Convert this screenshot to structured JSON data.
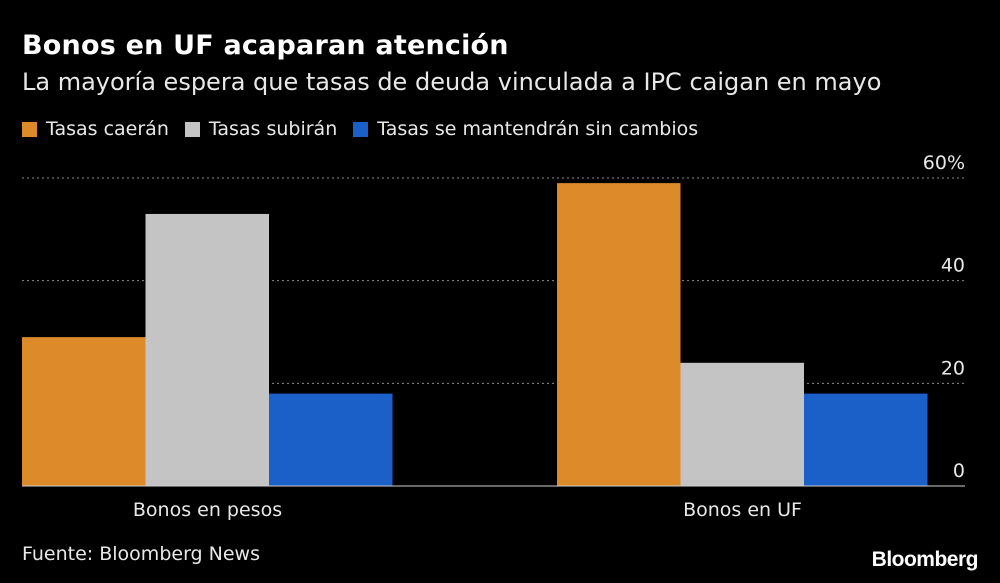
{
  "header": {
    "title": "Bonos en UF acaparan atención",
    "subtitle": "La mayoría espera que tasas de deuda vinculada a IPC caigan en mayo"
  },
  "legend": {
    "items": [
      {
        "label": "Tasas caerán",
        "color": "#dc8a2a"
      },
      {
        "label": "Tasas subirán",
        "color": "#c4c4c4"
      },
      {
        "label": "Tasas se mantendrán sin cambios",
        "color": "#1b5fc9"
      }
    ]
  },
  "chart_data": {
    "type": "bar",
    "categories": [
      "Bonos en pesos",
      "Bonos en UF"
    ],
    "series": [
      {
        "name": "Tasas caerán",
        "color": "#dc8a2a",
        "values": [
          29,
          59
        ]
      },
      {
        "name": "Tasas subirán",
        "color": "#c4c4c4",
        "values": [
          53,
          24
        ]
      },
      {
        "name": "Tasas se mantendrán sin cambios",
        "color": "#1b5fc9",
        "values": [
          18,
          18
        ]
      }
    ],
    "yticks": [
      0,
      20,
      40,
      60
    ],
    "ytick_labels": [
      "0",
      "20",
      "40",
      "60%"
    ],
    "ylim": [
      0,
      60
    ],
    "grid": true,
    "yaxis_position": "right",
    "legend_position": "top-left"
  },
  "footer": {
    "source": "Fuente: Bloomberg News",
    "brand": "Bloomberg"
  }
}
